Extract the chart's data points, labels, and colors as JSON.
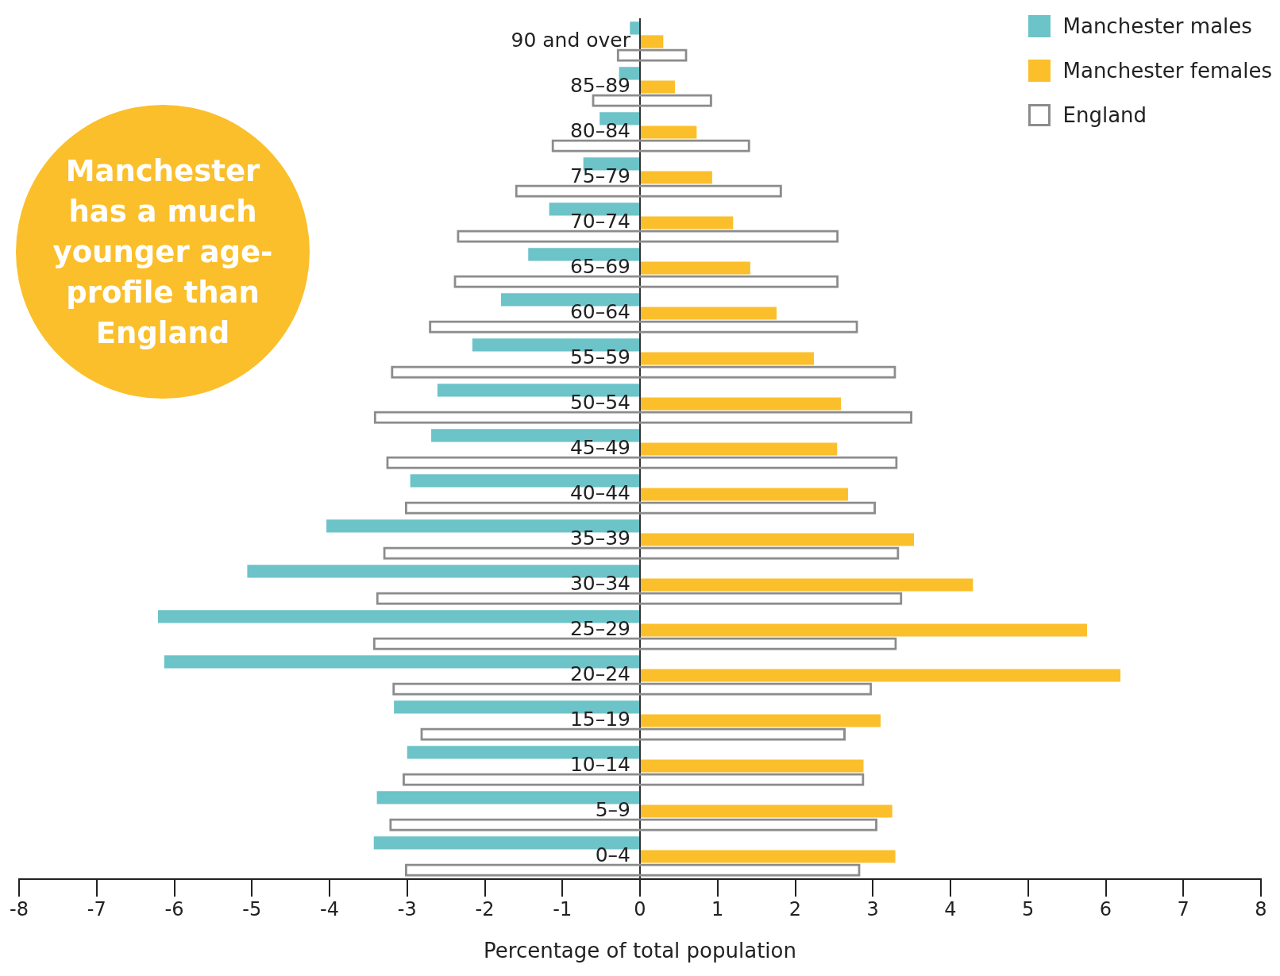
{
  "chart_data": {
    "type": "bar",
    "orientation": "horizontal",
    "xlabel": "Percentage of total population",
    "categories": [
      "90 and over",
      "85–89",
      "80–84",
      "75–79",
      "70–74",
      "65–69",
      "60–64",
      "55–59",
      "50–54",
      "45–49",
      "40–44",
      "35–39",
      "30–34",
      "25–29",
      "20–24",
      "15–19",
      "10–14",
      "5–9",
      "0–4"
    ],
    "series": [
      {
        "name": "Manchester males",
        "color": "#6cc3c8",
        "values": [
          -0.13,
          -0.27,
          -0.52,
          -0.73,
          -1.17,
          -1.44,
          -1.79,
          -2.16,
          -2.61,
          -2.69,
          -2.96,
          -4.04,
          -5.06,
          -6.21,
          -6.13,
          -3.17,
          -3.0,
          -3.39,
          -3.43
        ]
      },
      {
        "name": "Manchester females",
        "color": "#fbbf2b",
        "values": [
          0.3,
          0.45,
          0.73,
          0.93,
          1.2,
          1.42,
          1.76,
          2.24,
          2.59,
          2.54,
          2.68,
          3.53,
          4.29,
          5.76,
          6.19,
          3.1,
          2.88,
          3.25,
          3.29
        ]
      },
      {
        "name": "England",
        "color": "#8c8c8c",
        "base": [
          -0.3,
          -0.62,
          -1.14,
          -1.61,
          -2.36,
          -2.4,
          -2.72,
          -3.21,
          -3.43,
          -3.27,
          -3.03,
          -3.31,
          -3.4,
          -3.44,
          -3.19,
          -2.83,
          -3.06,
          -3.23,
          -3.03
        ],
        "values": [
          0.91,
          1.55,
          2.56,
          3.44,
          4.92,
          4.96,
          5.53,
          6.51,
          6.94,
          6.59,
          6.07,
          6.65,
          6.78,
          6.75,
          6.18,
          5.48,
          5.95,
          6.29,
          5.87
        ]
      }
    ],
    "xlim": [
      -8,
      8
    ],
    "xticks": [
      -8,
      -7,
      -6,
      -5,
      -4,
      -3,
      -2,
      -1,
      0,
      1,
      2,
      3,
      4,
      5,
      6,
      7,
      8
    ],
    "annotations": [
      "Manchester has a much younger age-profile than England"
    ],
    "legend": "top right",
    "grid": false
  }
}
